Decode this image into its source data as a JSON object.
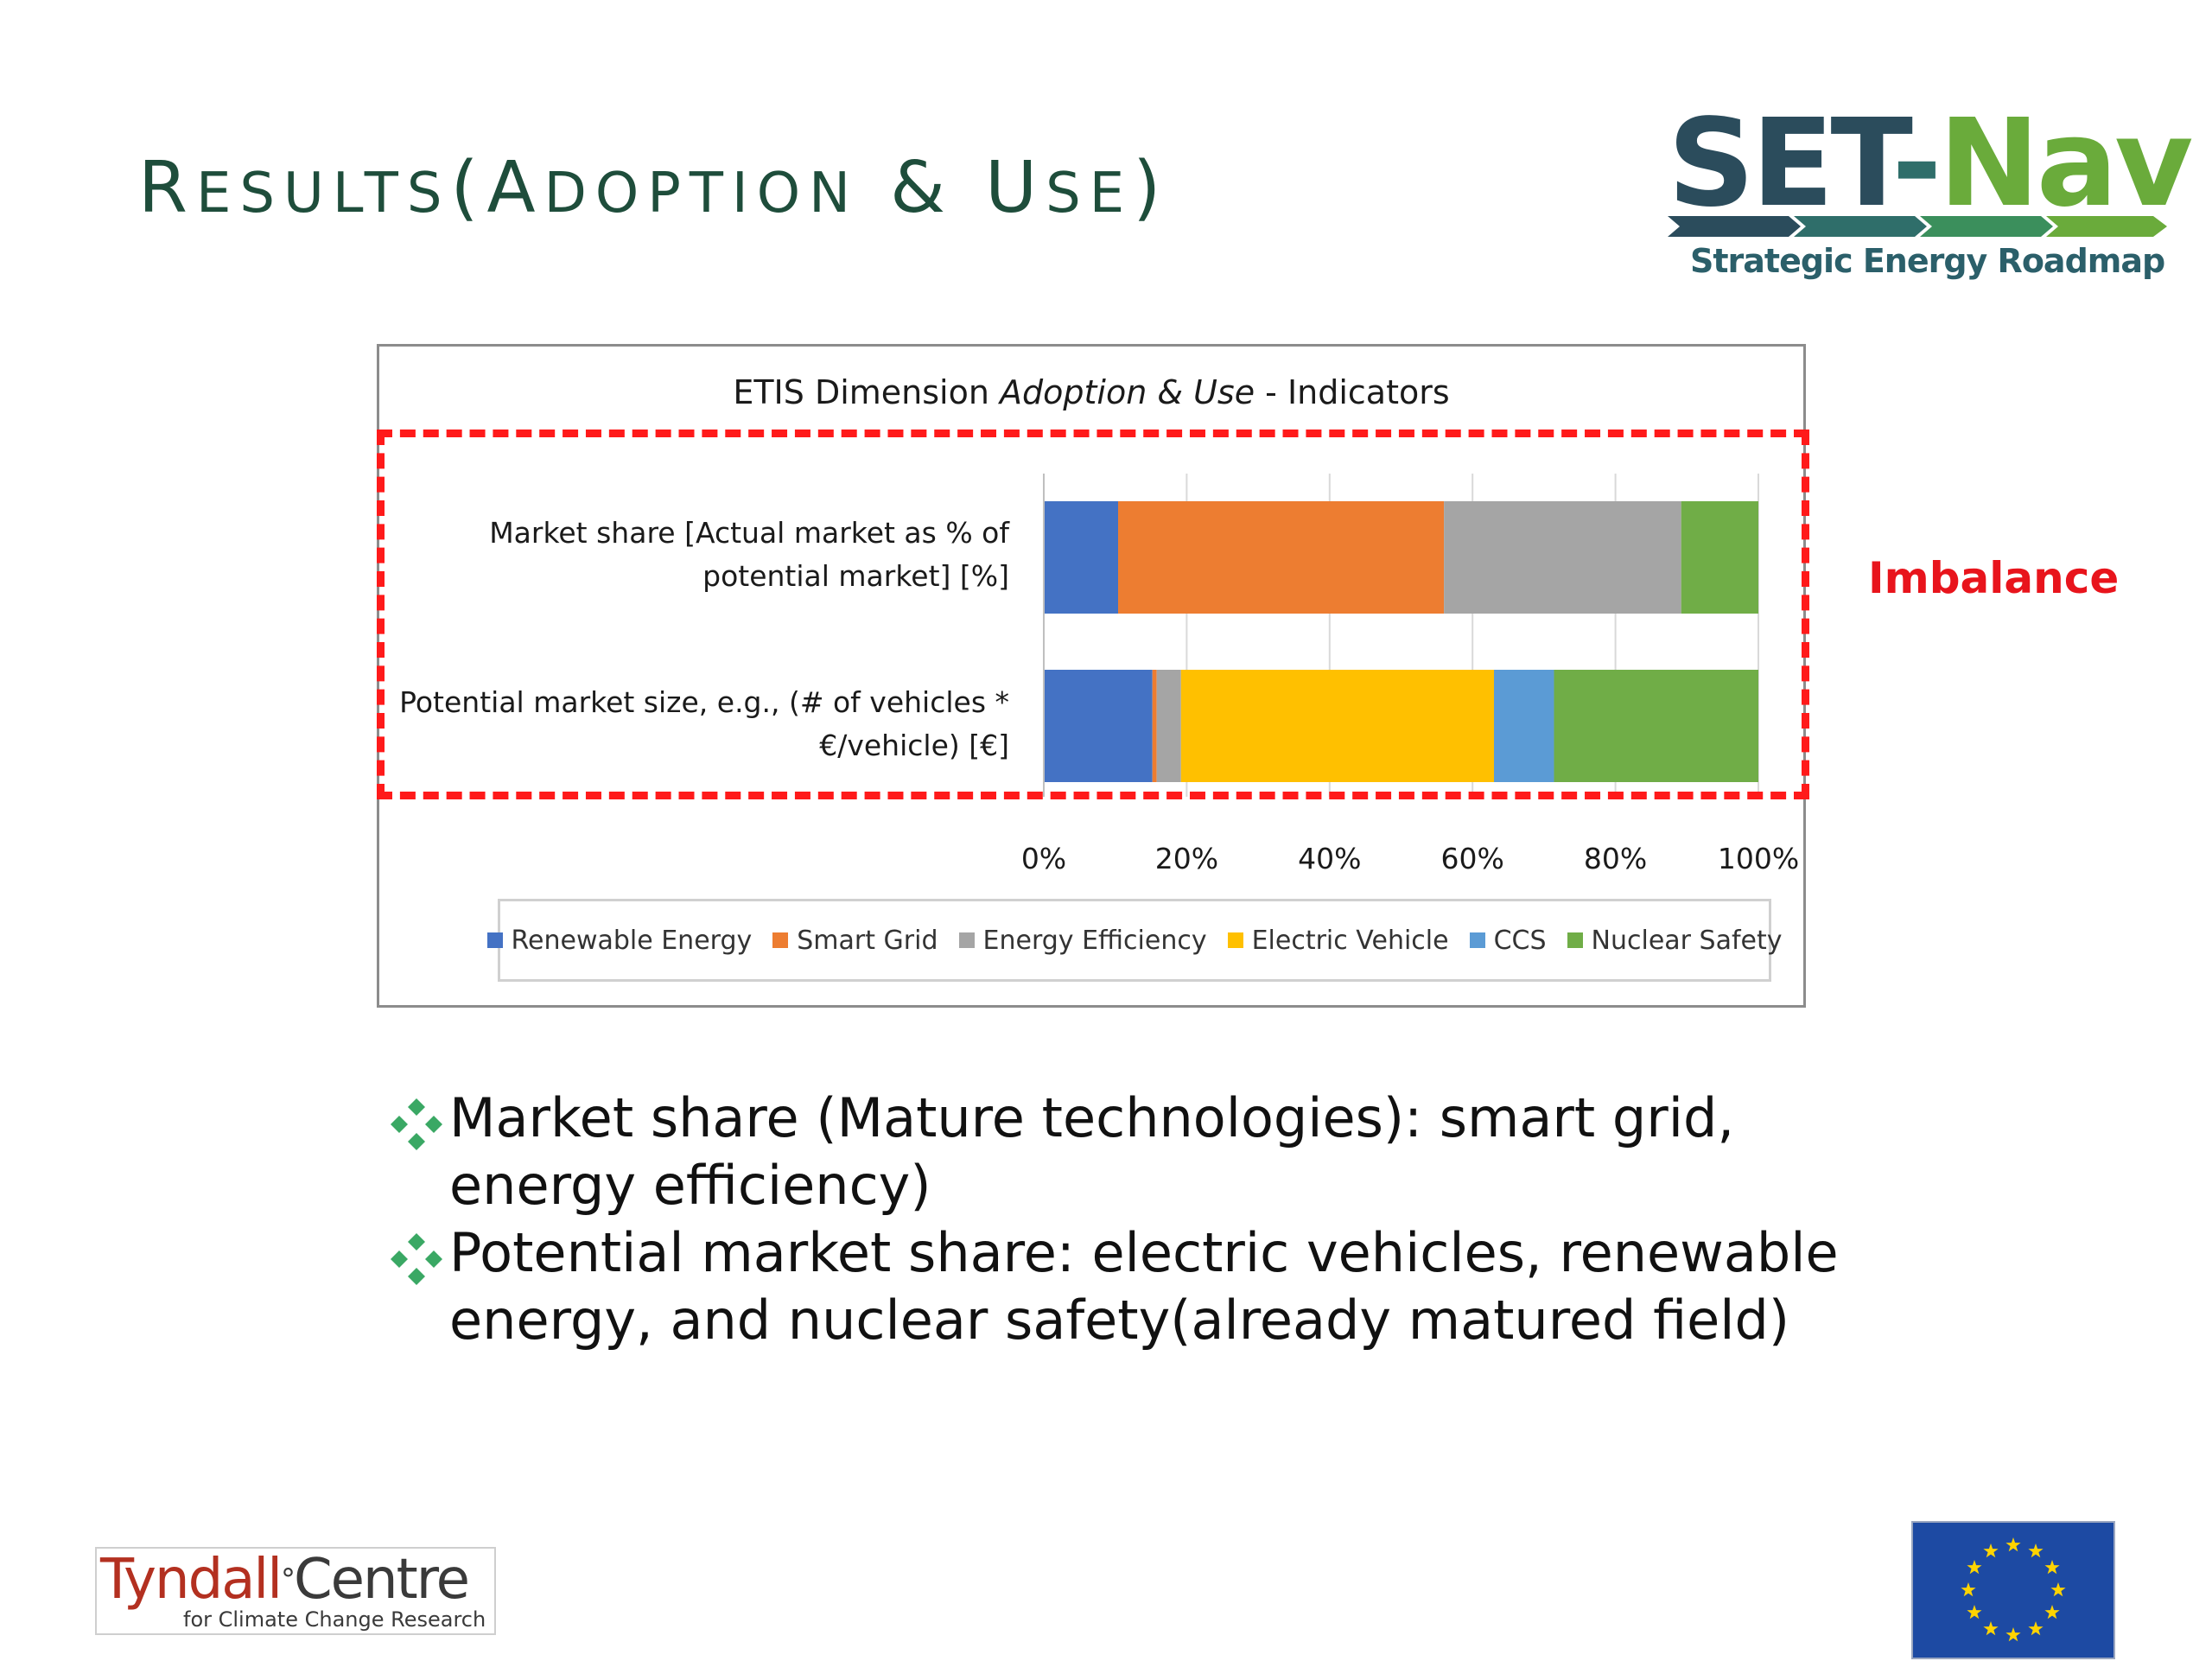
{
  "slide": {
    "title_cap1": "R",
    "title_sc1": "ESULTS",
    "title_mid": "(",
    "title_cap2": "A",
    "title_sc2": "DOPTION",
    "title_amp": " & ",
    "title_cap3": "U",
    "title_sc3": "SE",
    "title_end": ")",
    "annotation": "Imbalance"
  },
  "logo_setnav": {
    "word_set": "SET",
    "word_dash": "-",
    "word_nav": "Nav",
    "subtitle": "Strategic Energy Roadmap"
  },
  "logo_tyndall": {
    "main": "Tyndall",
    "degree": "°",
    "centre": "Centre",
    "subtitle": "for Climate Change Research"
  },
  "bullets": [
    {
      "line1": "Market share (Mature technologies): smart grid,",
      "line2": "energy efficiency)"
    },
    {
      "line1": "Potential market share: electric vehicles, renewable",
      "line2": "energy, and nuclear safety(already matured field)"
    }
  ],
  "colors": {
    "title": "#1e4d3b",
    "annotation": "#e8141c",
    "dashed_box": "#ff1a1a",
    "bullet_icon": "#3aa864"
  },
  "chart_data": {
    "type": "bar",
    "orientation": "horizontal",
    "stacked": "percent",
    "title_pre": "ETIS Dimension ",
    "title_italic": "Adoption & Use",
    "title_post": " - Indicators",
    "categories": [
      {
        "line1": "Market share [Actual market as % of",
        "line2": "potential market] [%]"
      },
      {
        "line1": "Potential market size, e.g., (# of vehicles *",
        "line2": "€/vehicle) [€]"
      }
    ],
    "series": [
      {
        "name": "Renewable Energy",
        "color": "#4472c4",
        "values": [
          10.4,
          15.2
        ]
      },
      {
        "name": "Smart Grid",
        "color": "#ed7d31",
        "values": [
          45.6,
          0.6
        ]
      },
      {
        "name": "Energy Efficiency",
        "color": "#a5a5a5",
        "values": [
          33.2,
          3.4
        ]
      },
      {
        "name": "Electric Vehicle",
        "color": "#ffc000",
        "values": [
          0,
          43.8
        ]
      },
      {
        "name": "CCS",
        "color": "#5b9bd5",
        "values": [
          0,
          8.4
        ]
      },
      {
        "name": "Nuclear Safety",
        "color": "#70ad47",
        "values": [
          10.8,
          28.6
        ]
      }
    ],
    "xlim": [
      0,
      100
    ],
    "x_ticks": [
      "0%",
      "20%",
      "40%",
      "60%",
      "80%",
      "100%"
    ],
    "grid": true,
    "legend": "bottom"
  }
}
